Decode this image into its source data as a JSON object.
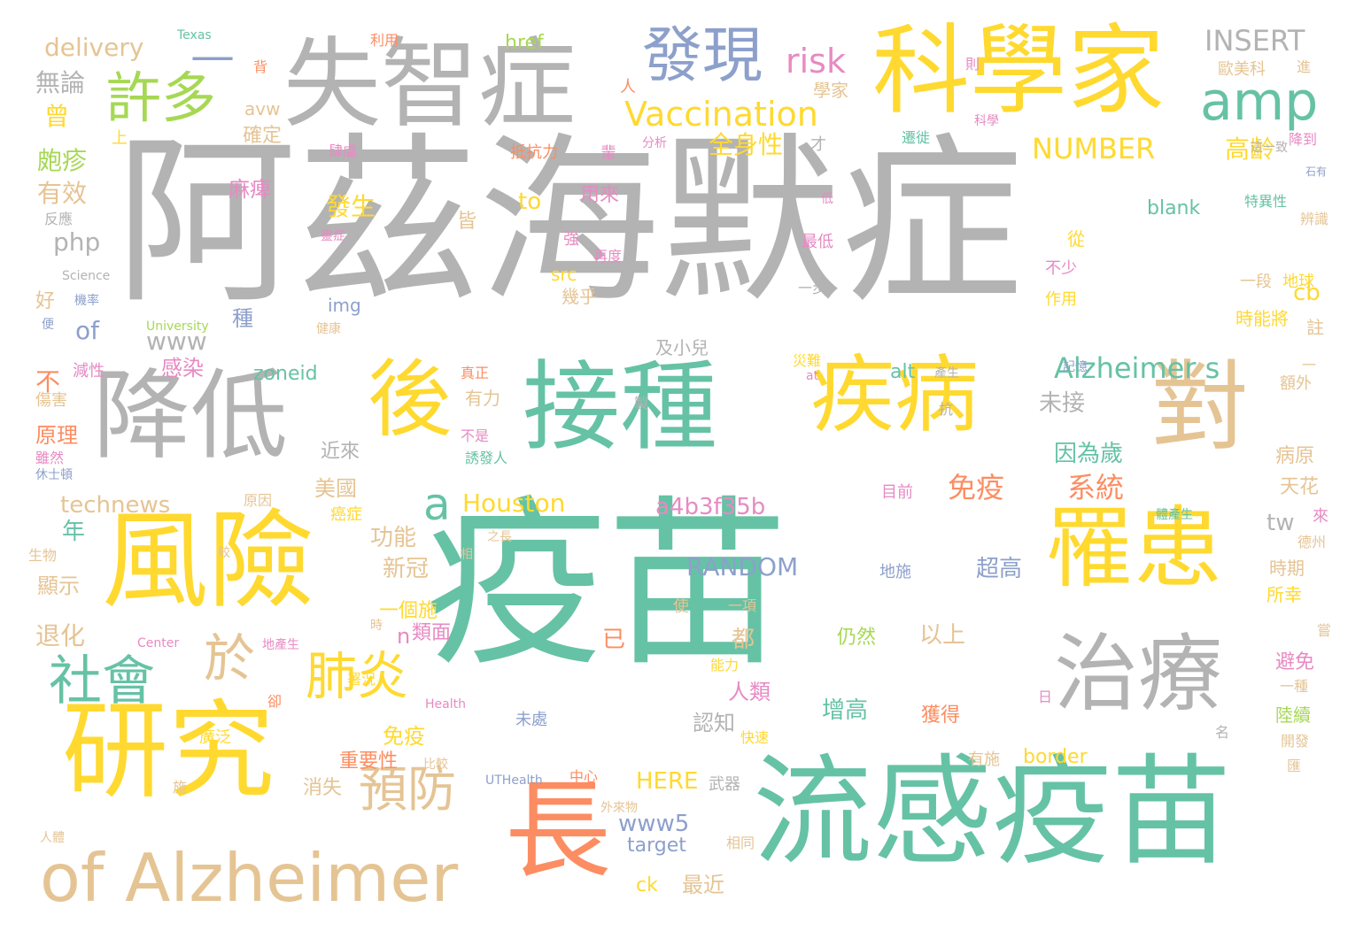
{
  "palette": {
    "gray": "#b3b3b3",
    "teal": "#66c2a5",
    "yellow": "#ffd92f",
    "tan": "#e5c494",
    "green": "#a6d854",
    "orange": "#fc8d62",
    "blue": "#8da0cb",
    "pink": "#e78ac3"
  },
  "words": [
    "阿茲海默症",
    "疫苗",
    "流感疫苗",
    "接種",
    "失智症",
    "科學家",
    "研究",
    "風險",
    "降低",
    "後",
    "疾病",
    "對",
    "罹患",
    "治療",
    "長",
    "of Alzheimer",
    "發現",
    "amp",
    "許多",
    "社會",
    "於",
    "肺炎",
    "預防",
    "risk",
    "Vaccination",
    "免疫",
    "系統",
    "Alzheimer s",
    "全身性",
    "NUMBER",
    "INSERT",
    "高齡",
    "delivery",
    "無論",
    "a",
    "Houston",
    "technews",
    "RANDOM",
    "a4b3f35b",
    "www5",
    "HERE",
    "to",
    "發生",
    "php",
    "of",
    "www",
    "有效",
    "皰疹",
    "麻痺",
    "確定",
    "免疫",
    "感染",
    "人類",
    "認知",
    "最近",
    "zoneid",
    "近來",
    "未接",
    "因為歲",
    "tw",
    "cb",
    "美國",
    "功能",
    "新冠",
    "顯示",
    "退化",
    "原理",
    "超高",
    "以上",
    "仍然",
    "增高",
    "獲得",
    "已",
    "都",
    "n",
    "類面",
    "一個施",
    "重要性",
    "border",
    "blank",
    "Texas",
    "href",
    "利用",
    "avw",
    "背",
    "人",
    "學家",
    "則",
    "歐美科",
    "進",
    "分析",
    "才",
    "抵抗力",
    "輩",
    "用來",
    "再度",
    "強",
    "皆",
    "src",
    "幾乎",
    "img",
    "健康",
    "University",
    "Science",
    "反應",
    "便",
    "好",
    "種",
    "機率",
    "減性",
    "傷害",
    "雖然",
    "休士頓",
    "alt",
    "產生",
    "有力",
    "真正",
    "不是",
    "誘發人",
    "病原",
    "天花",
    "額外",
    "記憶",
    "抗",
    "災難",
    "at",
    "生物",
    "Center",
    "Health",
    "卻",
    "廣泛",
    "時",
    "署況",
    "地產生",
    "相",
    "中心",
    "UTHealth",
    "外來物",
    "比較",
    "target",
    "ck",
    "相同",
    "武器",
    "消失",
    "快速",
    "有施",
    "日",
    "能力",
    "一項",
    "使",
    "地施",
    "未處",
    "陸續",
    "開發",
    "一種",
    "避免",
    "嘗",
    "時能將",
    "所幸",
    "時期",
    "德州",
    "來",
    "體產生",
    "天花",
    "註",
    "作用",
    "不少",
    "從",
    "一段",
    "地球",
    "最低",
    "低",
    "特異性",
    "辨識",
    "降到",
    "科學",
    "遷徙",
    "這一致",
    "石有",
    "靈症",
    "肆虐",
    "年",
    "之長",
    "較",
    "施",
    "人體",
    "一步",
    "及小兒",
    "製",
    "目前",
    "原因",
    "癌症",
    "曾",
    "上",
    "—",
    "名",
    "匯",
    "不",
    "較",
    "一",
    "及小兒"
  ]
}
